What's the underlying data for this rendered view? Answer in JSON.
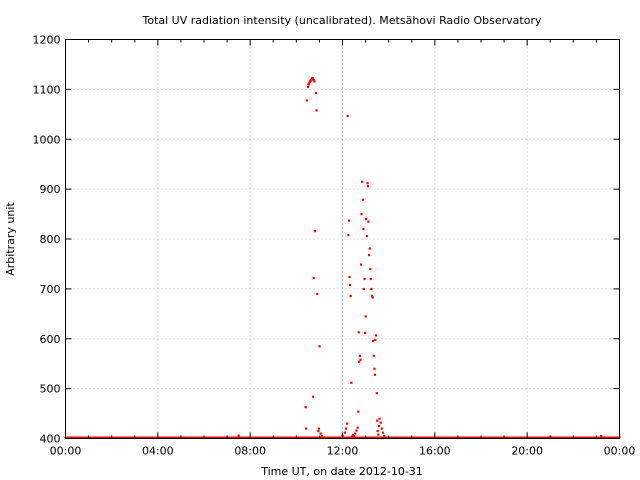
{
  "chart_data": {
    "type": "scatter",
    "title": "Total UV radiation intensity (uncalibrated). Metsähovi Radio Observatory",
    "xlabel": "Time UT, on date 2012-10-31",
    "ylabel": "Arbitrary unit",
    "x_unit": "hours",
    "xlim": [
      0,
      24
    ],
    "ylim": [
      400,
      1200
    ],
    "x_ticks": [
      0,
      4,
      8,
      12,
      16,
      20,
      24
    ],
    "x_tick_labels": [
      "00:00",
      "04:00",
      "08:00",
      "12:00",
      "16:00",
      "20:00",
      "00:00"
    ],
    "y_ticks": [
      400,
      500,
      600,
      700,
      800,
      900,
      1000,
      1100,
      1200
    ],
    "y_tick_labels": [
      "400",
      "500",
      "600",
      "700",
      "800",
      "900",
      "1000",
      "1100",
      "1200"
    ],
    "grid": true,
    "marker_color": "#ff0000",
    "baseline": {
      "value": 401,
      "x_range": [
        0,
        24
      ],
      "step": 0.05
    },
    "points": [
      [
        7.5,
        406
      ],
      [
        10.4,
        463
      ],
      [
        10.42,
        420
      ],
      [
        10.45,
        1078
      ],
      [
        10.5,
        1105
      ],
      [
        10.52,
        1110
      ],
      [
        10.55,
        1112
      ],
      [
        10.58,
        1115
      ],
      [
        10.6,
        1117
      ],
      [
        10.62,
        1118
      ],
      [
        10.65,
        1120
      ],
      [
        10.68,
        1122
      ],
      [
        10.7,
        1123
      ],
      [
        10.72,
        1121
      ],
      [
        10.75,
        1119
      ],
      [
        10.78,
        1116
      ],
      [
        10.72,
        484
      ],
      [
        10.75,
        722
      ],
      [
        10.8,
        816
      ],
      [
        10.85,
        1093
      ],
      [
        10.87,
        1058
      ],
      [
        10.9,
        690
      ],
      [
        10.95,
        415
      ],
      [
        10.97,
        420
      ],
      [
        11.0,
        585
      ],
      [
        11.05,
        410
      ],
      [
        11.1,
        405
      ],
      [
        12.0,
        406
      ],
      [
        12.1,
        412
      ],
      [
        12.15,
        420
      ],
      [
        12.2,
        430
      ],
      [
        12.22,
        1047
      ],
      [
        12.25,
        808
      ],
      [
        12.28,
        837
      ],
      [
        12.3,
        724
      ],
      [
        12.32,
        708
      ],
      [
        12.35,
        686
      ],
      [
        12.38,
        512
      ],
      [
        12.4,
        404
      ],
      [
        12.45,
        407
      ],
      [
        12.5,
        405
      ],
      [
        12.55,
        410
      ],
      [
        12.6,
        416
      ],
      [
        12.65,
        422
      ],
      [
        12.68,
        454
      ],
      [
        12.7,
        613
      ],
      [
        12.72,
        554
      ],
      [
        12.75,
        566
      ],
      [
        12.78,
        558
      ],
      [
        12.8,
        749
      ],
      [
        12.82,
        850
      ],
      [
        12.85,
        915
      ],
      [
        12.88,
        879
      ],
      [
        12.9,
        820
      ],
      [
        12.92,
        700
      ],
      [
        12.95,
        720
      ],
      [
        12.98,
        612
      ],
      [
        13.0,
        645
      ],
      [
        13.02,
        840
      ],
      [
        13.05,
        806
      ],
      [
        13.08,
        912
      ],
      [
        13.1,
        906
      ],
      [
        13.12,
        835
      ],
      [
        13.15,
        768
      ],
      [
        13.18,
        781
      ],
      [
        13.2,
        740
      ],
      [
        13.22,
        720
      ],
      [
        13.25,
        700
      ],
      [
        13.28,
        686
      ],
      [
        13.3,
        683
      ],
      [
        13.32,
        596
      ],
      [
        13.35,
        566
      ],
      [
        13.38,
        540
      ],
      [
        13.4,
        528
      ],
      [
        13.42,
        598
      ],
      [
        13.45,
        607
      ],
      [
        13.48,
        491
      ],
      [
        13.5,
        436
      ],
      [
        13.52,
        415
      ],
      [
        13.55,
        408
      ],
      [
        13.58,
        425
      ],
      [
        13.6,
        440
      ],
      [
        13.65,
        432
      ],
      [
        13.7,
        420
      ],
      [
        13.75,
        412
      ],
      [
        13.8,
        405
      ],
      [
        21.0,
        404
      ],
      [
        23.2,
        405
      ]
    ]
  }
}
